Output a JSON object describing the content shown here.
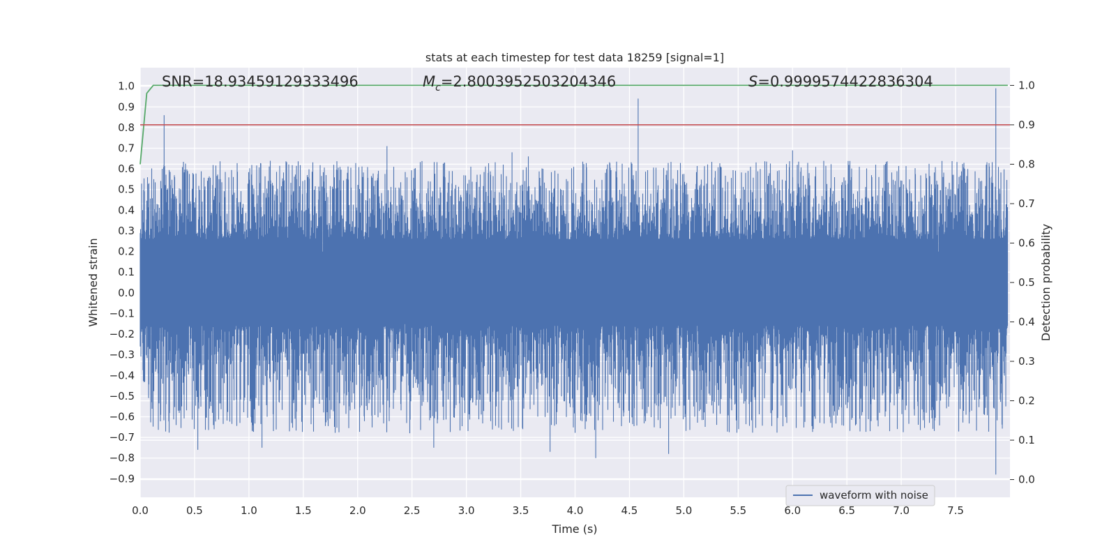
{
  "chart_data": {
    "type": "line",
    "title": "stats at each timestep for test data 18259 [signal=1]",
    "xlabel": "Time (s)",
    "ylabel": "Whitened strain",
    "y2label": "Detection probability",
    "xlim": [
      0.0,
      8.0
    ],
    "ylim": [
      -0.99,
      1.09
    ],
    "y2lim": [
      -0.045,
      1.045
    ],
    "xticks": [
      0.0,
      0.5,
      1.0,
      1.5,
      2.0,
      2.5,
      3.0,
      3.5,
      4.0,
      4.5,
      5.0,
      5.5,
      6.0,
      6.5,
      7.0,
      7.5
    ],
    "xtick_labels": [
      "0.0",
      "0.5",
      "1.0",
      "1.5",
      "2.0",
      "2.5",
      "3.0",
      "3.5",
      "4.0",
      "4.5",
      "5.0",
      "5.5",
      "6.0",
      "6.5",
      "7.0",
      "7.5"
    ],
    "yticks": [
      1.0,
      0.9,
      0.8,
      0.7,
      0.6,
      0.5,
      0.4,
      0.3,
      0.2,
      0.1,
      0.0,
      -0.1,
      -0.2,
      -0.3,
      -0.4,
      -0.5,
      -0.6,
      -0.7,
      -0.8,
      -0.9
    ],
    "ytick_labels": [
      "1.0",
      "0.9",
      "0.8",
      "0.7",
      "0.6",
      "0.5",
      "0.4",
      "0.3",
      "0.2",
      "0.1",
      "0.0",
      "−0.1",
      "−0.2",
      "−0.3",
      "−0.4",
      "−0.5",
      "−0.6",
      "−0.7",
      "−0.8",
      "−0.9"
    ],
    "y2ticks": [
      1.0,
      0.9,
      0.8,
      0.7,
      0.6,
      0.5,
      0.4,
      0.3,
      0.2,
      0.1,
      0.0
    ],
    "y2tick_labels": [
      "1.0",
      "0.9",
      "0.8",
      "0.7",
      "0.6",
      "0.5",
      "0.4",
      "0.3",
      "0.2",
      "0.1",
      "0.0"
    ],
    "grid": true,
    "annotations": {
      "snr": "SNR=18.93459129333496",
      "mc_symbol": "M",
      "mc_sub": "c",
      "mc_value": "=2.8003952503204346",
      "s_symbol": "S",
      "s_value": "=0.9999574422836304"
    },
    "legend": {
      "placement": "bottom-right",
      "entries": [
        "waveform with noise"
      ]
    },
    "series": [
      {
        "name": "waveform with noise",
        "color": "#4c72b0",
        "axis": "left",
        "kind": "noise-envelope",
        "x_end": 7.98,
        "peaks": [
          {
            "x": 0.22,
            "y": 0.86
          },
          {
            "x": 2.27,
            "y": 0.71
          },
          {
            "x": 3.42,
            "y": 0.68
          },
          {
            "x": 3.57,
            "y": 0.66
          },
          {
            "x": 4.58,
            "y": 0.94
          },
          {
            "x": 6.0,
            "y": 0.69
          },
          {
            "x": 7.87,
            "y": 0.99
          }
        ],
        "troughs": [
          {
            "x": 0.53,
            "y": -0.76
          },
          {
            "x": 1.12,
            "y": -0.75
          },
          {
            "x": 2.7,
            "y": -0.75
          },
          {
            "x": 3.77,
            "y": -0.77
          },
          {
            "x": 4.19,
            "y": -0.8
          },
          {
            "x": 4.86,
            "y": -0.78
          },
          {
            "x": 7.87,
            "y": -0.88
          }
        ]
      },
      {
        "name": "",
        "color": "#55a868",
        "axis": "right",
        "x": [
          0.0,
          0.06,
          0.12,
          0.5,
          1.0,
          2.0,
          3.0,
          4.0,
          5.0,
          6.0,
          7.0,
          7.98
        ],
        "y": [
          0.8,
          0.98,
          1.0,
          1.0,
          1.0,
          1.0,
          1.0,
          1.0,
          1.0,
          1.0,
          1.0,
          1.0
        ]
      },
      {
        "name": "",
        "color": "#c44e52",
        "axis": "right",
        "x": [
          0.0,
          8.0
        ],
        "y": [
          0.9,
          0.9
        ]
      }
    ]
  }
}
